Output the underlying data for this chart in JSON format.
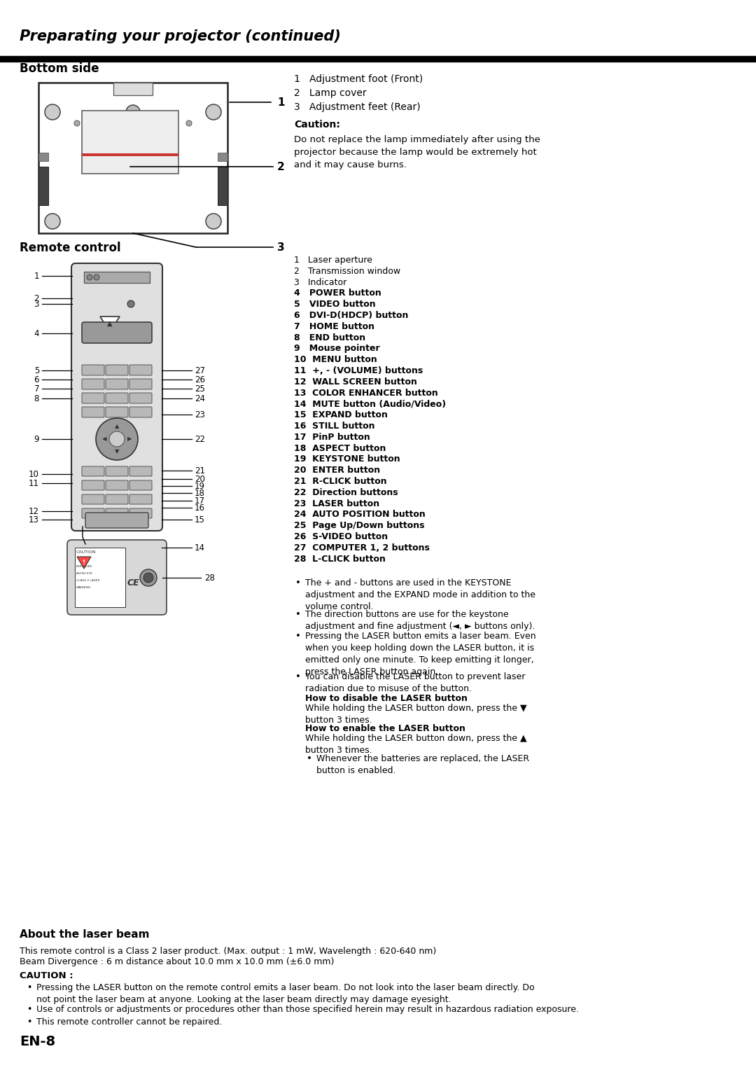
{
  "title": "Preparating your projector (continued)",
  "bg_color": "#ffffff",
  "text_color": "#000000",
  "section1_title": "Bottom side",
  "section2_title": "Remote control",
  "section3_title": "About the laser beam",
  "bottom_items": [
    "1   Adjustment foot (Front)",
    "2   Lamp cover",
    "3   Adjustment feet (Rear)"
  ],
  "caution_title": "Caution:",
  "caution_text": "Do not replace the lamp immediately after using the\nprojector because the lamp would be extremely hot\nand it may cause burns.",
  "remote_items": [
    "1   Laser aperture",
    "2   Transmission window",
    "3   Indicator",
    "4   POWER button",
    "5   VIDEO button",
    "6   DVI-D(HDCP) button",
    "7   HOME button",
    "8   END button",
    "9   Mouse pointer",
    "10  MENU button",
    "11  +, - (VOLUME) buttons",
    "12  WALL SCREEN button",
    "13  COLOR ENHANCER button",
    "14  MUTE button (Audio/Video)",
    "15  EXPAND button",
    "16  STILL button",
    "17  PinP button",
    "18  ASPECT button",
    "19  KEYSTONE button",
    "20  ENTER button",
    "21  R-CLICK button",
    "22  Direction buttons",
    "23  LASER button",
    "24  AUTO POSITION button",
    "25  Page Up/Down buttons",
    "26  S-VIDEO button",
    "27  COMPUTER 1, 2 buttons",
    "28  L-CLICK button"
  ],
  "bullet_notes": [
    "The + and - buttons are used in the KEYSTONE\nadjustment and the EXPAND mode in addition to the\nvolume control.",
    "The direction buttons are use for the keystone\nadjustment and fine adjustment (◄, ► buttons only).",
    "Pressing the LASER button emits a laser beam. Even\nwhen you keep holding down the LASER button, it is\nemitted only one minute. To keep emitting it longer,\npress the LASER button again.",
    "You can disable the LASER button to prevent laser\nradiation due to misuse of the button."
  ],
  "how_disable_title": "How to disable the LASER button",
  "how_disable_text": "While holding the LASER button down, press the ▼\nbutton 3 times.",
  "how_enable_title": "How to enable the LASER button",
  "how_enable_text": "While holding the LASER button down, press the ▲\nbutton 3 times.",
  "batteries_bullet": "Whenever the batteries are replaced, the LASER\nbutton is enabled.",
  "laser_title": "About the laser beam",
  "laser_line1": "This remote control is a Class 2 laser product. (Max. output : 1 mW, Wavelength : 620-640 nm)",
  "laser_line2": "Beam Divergence : 6 m distance about 10.0 mm x 10.0 mm (±6.0 mm)",
  "caution2_title": "CAUTION :",
  "caution2_bullets": [
    "Pressing the LASER button on the remote control emits a laser beam. Do not look into the laser beam directly. Do\nnot point the laser beam at anyone. Looking at the laser beam directly may damage eyesight.",
    "Use of controls or adjustments or procedures other than those specified herein may result in hazardous radiation exposure.",
    "This remote controller cannot be repaired."
  ],
  "page_num": "EN-8"
}
